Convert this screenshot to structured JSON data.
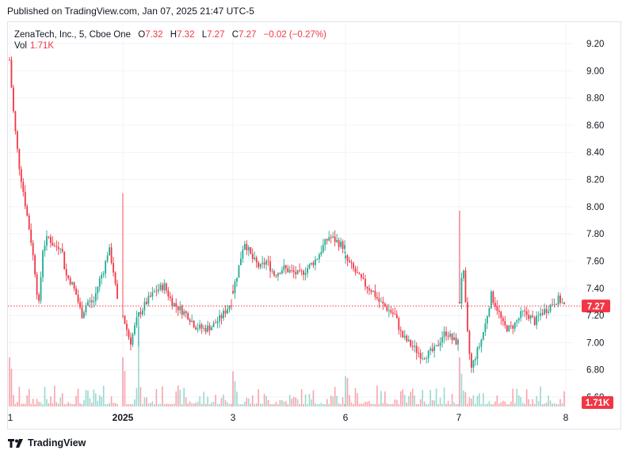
{
  "header": {
    "published": "Published on TradingView.com, Jan 07, 2025 21:47 UTC-5"
  },
  "legend": {
    "symbol": "ZenaTech, Inc., 5, Cboe One",
    "o_label": "O",
    "o_value": "7.32",
    "h_label": "H",
    "h_value": "7.32",
    "l_label": "L",
    "l_value": "7.27",
    "c_label": "C",
    "c_value": "7.27",
    "change": "−0.02 (−0.27%)",
    "vol_label": "Vol",
    "vol_value": "1.71K"
  },
  "footer": {
    "brand": "TradingView"
  },
  "colors": {
    "up": "#22ab94",
    "down": "#f23645",
    "grid": "#f0f3fa",
    "text": "#131722",
    "price_line": "#f23645"
  },
  "chart_data": {
    "type": "candlestick",
    "y_axis": {
      "ticks": [
        "9.20",
        "9.00",
        "8.80",
        "8.60",
        "8.40",
        "8.20",
        "8.00",
        "7.80",
        "7.60",
        "7.40",
        "7.20",
        "7.00",
        "6.80",
        "6.60"
      ],
      "min": 6.6,
      "max": 9.2
    },
    "x_axis": {
      "ticks": [
        "1",
        "2025",
        "3",
        "6",
        "7",
        "8"
      ]
    },
    "current_price": 7.27,
    "current_price_label": "7.27",
    "current_volume_label": "1.71K",
    "sessions": [
      {
        "label": "1",
        "points": [
          [
            0,
            9.08
          ],
          [
            0.03,
            8.75
          ],
          [
            0.06,
            8.5
          ],
          [
            0.09,
            8.3
          ],
          [
            0.12,
            8.15
          ],
          [
            0.16,
            7.95
          ],
          [
            0.2,
            7.75
          ],
          [
            0.24,
            7.5
          ],
          [
            0.27,
            7.25
          ],
          [
            0.31,
            7.7
          ],
          [
            0.36,
            7.78
          ],
          [
            0.42,
            7.7
          ],
          [
            0.48,
            7.72
          ],
          [
            0.52,
            7.5
          ],
          [
            0.57,
            7.45
          ],
          [
            0.62,
            7.35
          ],
          [
            0.67,
            7.2
          ],
          [
            0.72,
            7.3
          ],
          [
            0.78,
            7.3
          ],
          [
            0.83,
            7.45
          ],
          [
            0.88,
            7.55
          ],
          [
            0.92,
            7.7
          ],
          [
            0.96,
            7.55
          ],
          [
            1,
            7.3
          ]
        ]
      },
      {
        "label": "2025",
        "points": [
          [
            0,
            7.2
          ],
          [
            0.07,
            7.0
          ],
          [
            0.14,
            7.2
          ],
          [
            0.22,
            7.3
          ],
          [
            0.3,
            7.38
          ],
          [
            0.38,
            7.42
          ],
          [
            0.45,
            7.3
          ],
          [
            0.52,
            7.25
          ],
          [
            0.6,
            7.2
          ],
          [
            0.67,
            7.12
          ],
          [
            0.75,
            7.1
          ],
          [
            0.82,
            7.12
          ],
          [
            0.9,
            7.18
          ],
          [
            1,
            7.3
          ]
        ]
      },
      {
        "label": "3",
        "points": [
          [
            0,
            7.38
          ],
          [
            0.05,
            7.55
          ],
          [
            0.1,
            7.75
          ],
          [
            0.17,
            7.62
          ],
          [
            0.24,
            7.55
          ],
          [
            0.3,
            7.6
          ],
          [
            0.37,
            7.5
          ],
          [
            0.45,
            7.55
          ],
          [
            0.52,
            7.52
          ],
          [
            0.6,
            7.5
          ],
          [
            0.67,
            7.55
          ],
          [
            0.75,
            7.62
          ],
          [
            0.8,
            7.7
          ],
          [
            0.86,
            7.78
          ],
          [
            0.92,
            7.75
          ],
          [
            1,
            7.7
          ]
        ]
      },
      {
        "label": "6",
        "points": [
          [
            0,
            7.62
          ],
          [
            0.06,
            7.55
          ],
          [
            0.12,
            7.48
          ],
          [
            0.18,
            7.42
          ],
          [
            0.24,
            7.38
          ],
          [
            0.3,
            7.3
          ],
          [
            0.37,
            7.25
          ],
          [
            0.44,
            7.2
          ],
          [
            0.5,
            7.05
          ],
          [
            0.56,
            7.0
          ],
          [
            0.62,
            6.95
          ],
          [
            0.68,
            6.9
          ],
          [
            0.74,
            6.92
          ],
          [
            0.8,
            6.95
          ],
          [
            0.86,
            7.05
          ],
          [
            0.9,
            7.08
          ],
          [
            0.95,
            7.02
          ],
          [
            1,
            7.0
          ]
        ]
      },
      {
        "label": "7",
        "points": [
          [
            0,
            7.3
          ],
          [
            0.03,
            7.6
          ],
          [
            0.07,
            7.1
          ],
          [
            0.11,
            6.8
          ],
          [
            0.15,
            6.9
          ],
          [
            0.2,
            7.0
          ],
          [
            0.25,
            7.15
          ],
          [
            0.3,
            7.35
          ],
          [
            0.36,
            7.25
          ],
          [
            0.42,
            7.12
          ],
          [
            0.48,
            7.1
          ],
          [
            0.54,
            7.15
          ],
          [
            0.6,
            7.22
          ],
          [
            0.66,
            7.2
          ],
          [
            0.72,
            7.15
          ],
          [
            0.78,
            7.22
          ],
          [
            0.84,
            7.25
          ],
          [
            0.9,
            7.3
          ],
          [
            0.95,
            7.32
          ],
          [
            1,
            7.27
          ]
        ]
      }
    ]
  }
}
